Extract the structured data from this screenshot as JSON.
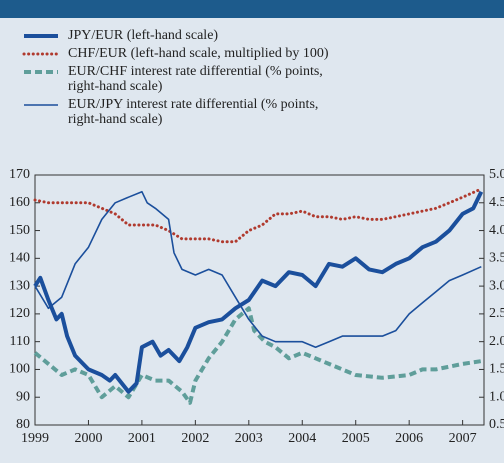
{
  "chart_data": {
    "type": "line",
    "xlim": [
      1999,
      2007.4
    ],
    "xticks": [
      1999,
      2000,
      2001,
      2002,
      2003,
      2004,
      2005,
      2006,
      2007
    ],
    "ylim": [
      80,
      170
    ],
    "yticks": [
      80,
      90,
      100,
      110,
      120,
      130,
      140,
      150,
      160,
      170
    ],
    "y2lim": [
      0.5,
      5.0
    ],
    "y2ticks": [
      0.5,
      {
        "value": 1,
        "label": "1.0"
      },
      1.5,
      {
        "value": 2,
        "label": "2.0"
      },
      2.5,
      {
        "value": 3,
        "label": "3.0"
      },
      3.5,
      {
        "value": 4,
        "label": "4.0"
      },
      4.5,
      {
        "value": 5,
        "label": "5.0"
      }
    ],
    "series": [
      {
        "name": "JPY/EUR (left-hand scale)",
        "color": "#1b4f9c",
        "style": "thick",
        "x": [
          1999,
          1999.1,
          1999.25,
          1999.4,
          1999.5,
          1999.6,
          1999.75,
          1999.9,
          2000,
          2000.25,
          2000.4,
          2000.5,
          2000.75,
          2000.9,
          2001,
          2001.2,
          2001.35,
          2001.5,
          2001.7,
          2001.85,
          2002,
          2002.25,
          2002.5,
          2002.75,
          2003,
          2003.25,
          2003.5,
          2003.75,
          2004,
          2004.25,
          2004.5,
          2004.75,
          2005,
          2005.25,
          2005.5,
          2005.75,
          2006,
          2006.25,
          2006.5,
          2006.75,
          2007,
          2007.2,
          2007.35
        ],
        "values": [
          130,
          133,
          125,
          118,
          120,
          112,
          105,
          102,
          100,
          98,
          96,
          98,
          92,
          95,
          108,
          110,
          105,
          107,
          103,
          108,
          115,
          117,
          118,
          122,
          125,
          132,
          130,
          135,
          134,
          130,
          138,
          137,
          140,
          136,
          135,
          138,
          140,
          144,
          146,
          150,
          156,
          158,
          164
        ]
      },
      {
        "name": "CHF/EUR (left-hand scale, multiplied by 100)",
        "color": "#b03a2e",
        "style": "dotted",
        "x": [
          1999,
          1999.25,
          1999.5,
          2000,
          2000.25,
          2000.5,
          2000.75,
          2001,
          2001.25,
          2001.5,
          2001.75,
          2002,
          2002.25,
          2002.5,
          2002.75,
          2003,
          2003.25,
          2003.5,
          2003.75,
          2004,
          2004.25,
          2004.5,
          2004.75,
          2005,
          2005.25,
          2005.5,
          2005.75,
          2006,
          2006.25,
          2006.5,
          2006.75,
          2007,
          2007.35
        ],
        "values": [
          161,
          160,
          160,
          160,
          158,
          156,
          152,
          152,
          152,
          150,
          147,
          147,
          147,
          146,
          146,
          150,
          152,
          156,
          156,
          157,
          155,
          155,
          154,
          155,
          154,
          154,
          155,
          156,
          157,
          158,
          160,
          162,
          165
        ]
      },
      {
        "name": "EUR/CHF interest rate differential (% points, right-hand scale)",
        "color": "#5f9e9a",
        "style": "dashed",
        "axis": "y2",
        "x": [
          1999,
          1999.25,
          1999.5,
          1999.75,
          2000,
          2000.25,
          2000.5,
          2000.75,
          2001,
          2001.25,
          2001.5,
          2001.75,
          2001.9,
          2002,
          2002.25,
          2002.5,
          2002.75,
          2003,
          2003.1,
          2003.3,
          2003.5,
          2003.75,
          2004,
          2004.5,
          2005,
          2005.5,
          2006,
          2006.25,
          2006.5,
          2007,
          2007.35
        ],
        "values": [
          1.8,
          1.6,
          1.4,
          1.5,
          1.4,
          1.0,
          1.2,
          1.0,
          1.4,
          1.3,
          1.3,
          1.1,
          0.9,
          1.3,
          1.7,
          2.0,
          2.4,
          2.6,
          2.2,
          2.0,
          1.9,
          1.7,
          1.8,
          1.6,
          1.4,
          1.35,
          1.4,
          1.5,
          1.5,
          1.6,
          1.65
        ]
      },
      {
        "name": "EUR/JPY interest rate differential (% points, right-hand scale)",
        "color": "#1b4f9c",
        "style": "thin",
        "axis": "y2",
        "x": [
          1999,
          1999.25,
          1999.5,
          1999.75,
          2000,
          2000.25,
          2000.5,
          2000.75,
          2001,
          2001.1,
          2001.25,
          2001.5,
          2001.6,
          2001.75,
          2002,
          2002.25,
          2002.5,
          2002.75,
          2003,
          2003.25,
          2003.5,
          2003.75,
          2004,
          2004.25,
          2004.5,
          2004.75,
          2005,
          2005.5,
          2005.75,
          2006,
          2006.25,
          2006.5,
          2006.75,
          2007,
          2007.35
        ],
        "values": [
          3.0,
          2.6,
          2.8,
          3.4,
          3.7,
          4.2,
          4.5,
          4.6,
          4.7,
          4.5,
          4.4,
          4.2,
          3.6,
          3.3,
          3.2,
          3.3,
          3.2,
          2.8,
          2.4,
          2.1,
          2.0,
          2.0,
          2.0,
          1.9,
          2.0,
          2.1,
          2.1,
          2.1,
          2.2,
          2.5,
          2.7,
          2.9,
          3.1,
          3.2,
          3.35
        ]
      }
    ]
  }
}
